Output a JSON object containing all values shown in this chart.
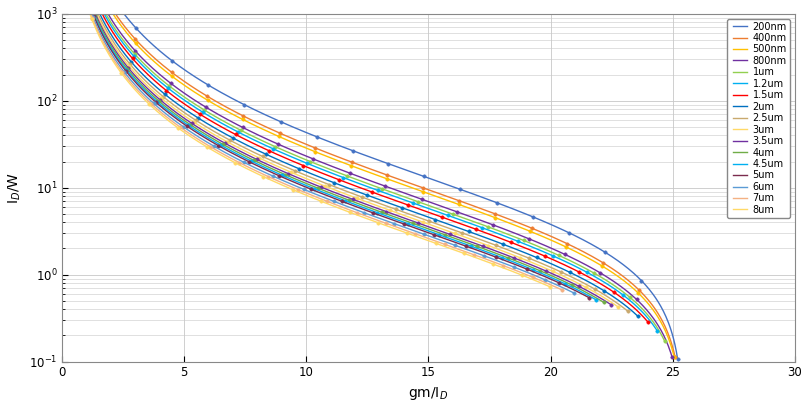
{
  "title": "",
  "xlabel": "gm/I_D",
  "ylabel": "I_D/W",
  "xlim": [
    0,
    30
  ],
  "ylim_log": [
    -1,
    3
  ],
  "series": [
    {
      "label": "200nm",
      "color": "#4472C4",
      "L": 0.2,
      "end_x": 26.5,
      "marker": "o"
    },
    {
      "label": "400nm",
      "color": "#ED7D31",
      "L": 0.4,
      "end_x": 25.8,
      "marker": "o"
    },
    {
      "label": "500nm",
      "color": "#FFC000",
      "L": 0.5,
      "end_x": 25.5,
      "marker": "o"
    },
    {
      "label": "800nm",
      "color": "#7030A0",
      "L": 0.8,
      "end_x": 25.0,
      "marker": "o"
    },
    {
      "label": "1um",
      "color": "#92D050",
      "L": 1.0,
      "end_x": 24.7,
      "marker": "o"
    },
    {
      "label": "1.2um",
      "color": "#00B0F0",
      "L": 1.2,
      "end_x": 24.4,
      "marker": "o"
    },
    {
      "label": "1.5um",
      "color": "#FF0000",
      "L": 1.5,
      "end_x": 24.0,
      "marker": "o"
    },
    {
      "label": "2um",
      "color": "#0070C0",
      "L": 2.0,
      "end_x": 23.6,
      "marker": "o"
    },
    {
      "label": "2.5um",
      "color": "#C9A96E",
      "L": 2.5,
      "end_x": 23.2,
      "marker": "o"
    },
    {
      "label": "3um",
      "color": "#FFD966",
      "L": 3.0,
      "end_x": 22.8,
      "marker": "o"
    },
    {
      "label": "3.5um",
      "color": "#7030A0",
      "L": 3.5,
      "end_x": 22.5,
      "marker": "o"
    },
    {
      "label": "4um",
      "color": "#70AD47",
      "L": 4.0,
      "end_x": 22.2,
      "marker": "o"
    },
    {
      "label": "4.5um",
      "color": "#00B0F0",
      "L": 4.5,
      "end_x": 21.9,
      "marker": "o"
    },
    {
      "label": "5um",
      "color": "#7B2C4E",
      "L": 5.0,
      "end_x": 21.6,
      "marker": "o"
    },
    {
      "label": "6um",
      "color": "#5B9BD5",
      "L": 6.0,
      "end_x": 21.0,
      "marker": "o"
    },
    {
      "label": "7um",
      "color": "#F4B183",
      "L": 7.0,
      "end_x": 20.5,
      "marker": "o"
    },
    {
      "label": "8um",
      "color": "#FFD966",
      "L": 8.0,
      "end_x": 20.0,
      "marker": "o"
    }
  ],
  "background_color": "#FFFFFF",
  "grid_color": "#C8C8C8",
  "legend_fontsize": 7.0,
  "axis_fontsize": 10,
  "n_markers": 18
}
